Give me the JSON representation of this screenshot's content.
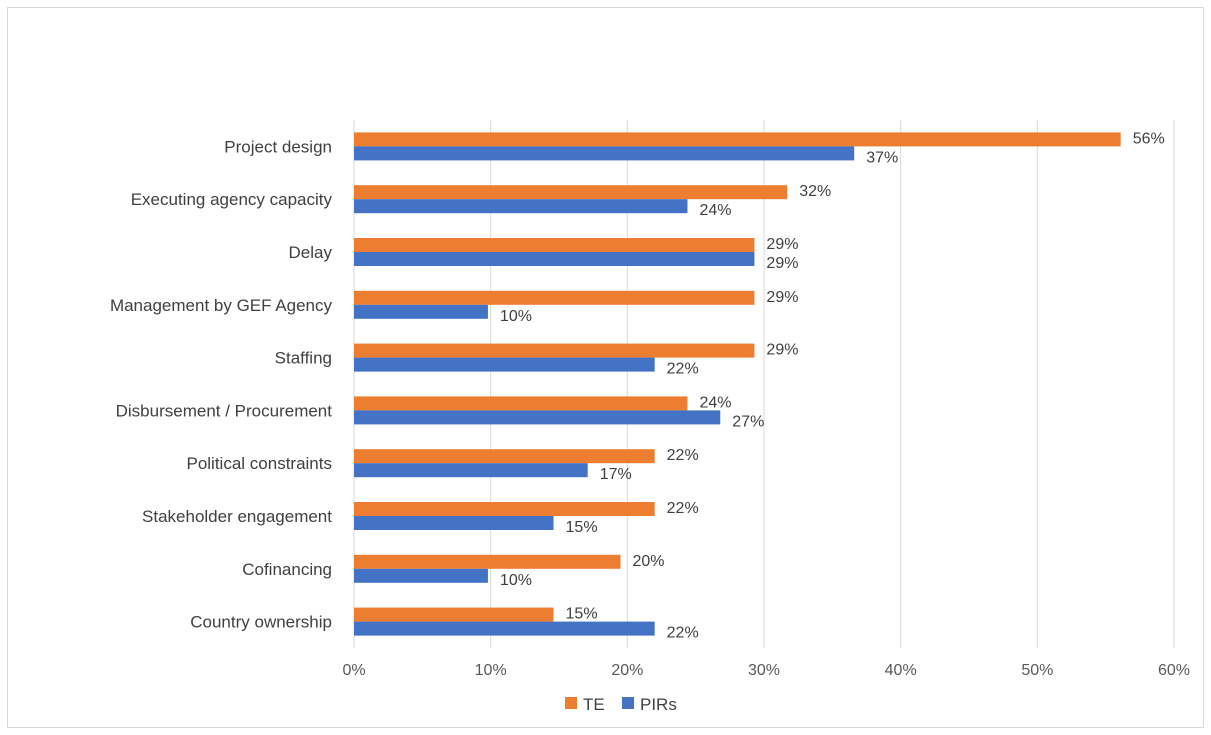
{
  "chart_data": {
    "type": "bar",
    "orientation": "horizontal",
    "title": "",
    "xlabel": "",
    "ylabel": "",
    "xlim": [
      0,
      60
    ],
    "x_ticks": [
      "0%",
      "10%",
      "20%",
      "30%",
      "40%",
      "50%",
      "60%"
    ],
    "x_tick_values": [
      0,
      10,
      20,
      30,
      40,
      50,
      60
    ],
    "grid": "vertical",
    "legend_position": "bottom",
    "categories": [
      "Project design",
      "Executing agency capacity",
      "Delay",
      "Management by GEF Agency",
      "Staffing",
      "Disbursement / Procurement",
      "Political constraints",
      "Stakeholder engagement",
      "Cofinancing",
      "Country ownership"
    ],
    "series": [
      {
        "name": "TE",
        "color": "#ED7D31",
        "values": [
          56.1,
          31.7,
          29.3,
          29.3,
          29.3,
          24.4,
          22.0,
          22.0,
          19.5,
          14.6
        ],
        "labels": [
          "56%",
          "32%",
          "29%",
          "29%",
          "29%",
          "24%",
          "22%",
          "22%",
          "20%",
          "15%"
        ]
      },
      {
        "name": "PIRs",
        "color": "#4472C4",
        "values": [
          36.6,
          24.4,
          29.3,
          9.8,
          22.0,
          26.8,
          17.1,
          14.6,
          9.8,
          22.0
        ],
        "labels": [
          "37%",
          "24%",
          "29%",
          "10%",
          "22%",
          "27%",
          "17%",
          "15%",
          "10%",
          "22%"
        ]
      }
    ]
  }
}
